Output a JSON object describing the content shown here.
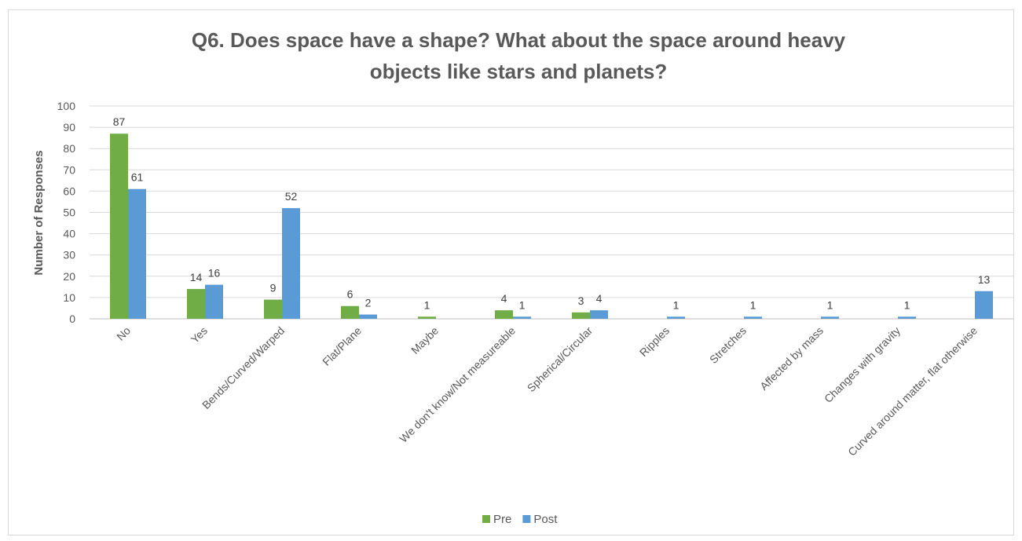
{
  "chart_data": {
    "type": "bar",
    "title_line1": "Q6. Does space have a shape? What about the space around heavy",
    "title_line2": "objects like stars and planets?",
    "ylabel": "Number of Responses",
    "xlabel": "",
    "ylim": [
      0,
      100
    ],
    "yticks": [
      0,
      10,
      20,
      30,
      40,
      50,
      60,
      70,
      80,
      90,
      100
    ],
    "grid": true,
    "legend_position": "bottom",
    "categories": [
      "No",
      "Yes",
      "Bends/Curved/Warped",
      "Flat/Plane",
      "Maybe",
      "We don't know/Not measureable",
      "Spherical/Circular",
      "Ripples",
      "Stretches",
      "Affected by mass",
      "Changes with gravity",
      "Curved around matter, flat otherwise"
    ],
    "series": [
      {
        "name": "Pre",
        "color": "#70ad47",
        "values": [
          87,
          14,
          9,
          6,
          1,
          4,
          3,
          null,
          null,
          null,
          null,
          null
        ]
      },
      {
        "name": "Post",
        "color": "#5b9bd5",
        "values": [
          61,
          16,
          52,
          2,
          null,
          1,
          4,
          1,
          1,
          1,
          1,
          13
        ]
      }
    ]
  }
}
